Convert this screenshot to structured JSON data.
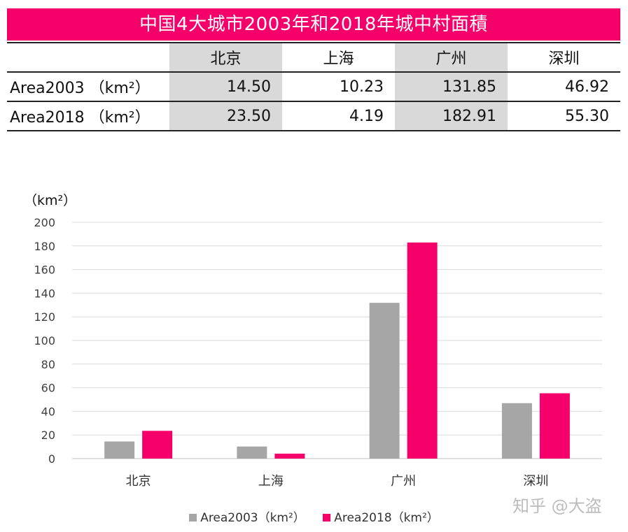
{
  "table": {
    "title": "中国4大城市2003年和2018年城中村面積",
    "columns": [
      "北京",
      "上海",
      "广州",
      "深圳"
    ],
    "rows": [
      {
        "label": "Area2003 （km²）",
        "values": [
          "14.50",
          "10.23",
          "131.85",
          "46.92"
        ]
      },
      {
        "label": "Area2018 （km²）",
        "values": [
          "23.50",
          "4.19",
          "182.91",
          "55.30"
        ]
      }
    ]
  },
  "chart_data": {
    "type": "bar",
    "title": "",
    "ylabel": "（km²）",
    "xlabel": "",
    "categories": [
      "北京",
      "上海",
      "广州",
      "深圳"
    ],
    "series": [
      {
        "name": "Area2003（km²）",
        "values": [
          14.5,
          10.23,
          131.85,
          46.92
        ],
        "color": "#a6a6a6"
      },
      {
        "name": "Area2018（km²）",
        "values": [
          23.5,
          4.19,
          182.91,
          55.3
        ],
        "color": "#f5006b"
      }
    ],
    "ylim": [
      0,
      200
    ],
    "yticks": [
      0,
      20,
      40,
      60,
      80,
      100,
      120,
      140,
      160,
      180,
      200
    ],
    "grid": true,
    "legend": "bottom"
  },
  "watermark": "知乎 @大盗"
}
